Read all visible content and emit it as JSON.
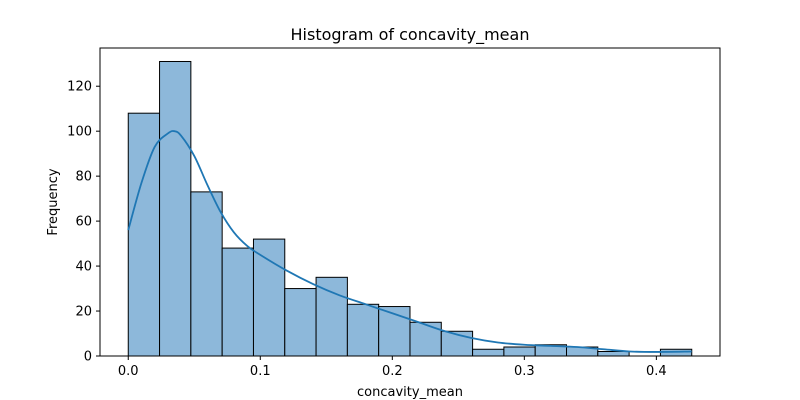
{
  "chart_data": {
    "type": "bar",
    "title": "Histogram of concavity_mean",
    "xlabel": "concavity_mean",
    "ylabel": "Frequency",
    "xlim": [
      -0.0214,
      0.4482
    ],
    "ylim": [
      0,
      137
    ],
    "x_ticks": [
      0.0,
      0.1,
      0.2,
      0.3,
      0.4
    ],
    "x_tick_labels": [
      "0.0",
      "0.1",
      "0.2",
      "0.3",
      "0.4"
    ],
    "y_ticks": [
      0,
      20,
      40,
      60,
      80,
      100,
      120
    ],
    "y_tick_labels": [
      "0",
      "20",
      "40",
      "60",
      "80",
      "100",
      "120"
    ],
    "bin_edges": [
      0.0,
      0.02371,
      0.04742,
      0.07113,
      0.09484,
      0.11855,
      0.14226,
      0.16597,
      0.18968,
      0.21339,
      0.2371,
      0.26081,
      0.28452,
      0.30823,
      0.33194,
      0.35565,
      0.37936,
      0.40307,
      0.4268
    ],
    "counts": [
      108,
      131,
      73,
      48,
      52,
      30,
      35,
      23,
      22,
      15,
      11,
      3,
      4,
      5,
      4,
      2,
      0,
      3
    ],
    "kde": {
      "x": [
        0.0,
        0.01,
        0.02,
        0.03,
        0.035,
        0.04,
        0.05,
        0.06,
        0.07,
        0.08,
        0.09,
        0.1,
        0.12,
        0.14,
        0.16,
        0.18,
        0.2,
        0.22,
        0.24,
        0.26,
        0.28,
        0.3,
        0.32,
        0.34,
        0.36,
        0.38,
        0.4,
        0.4268
      ],
      "y": [
        56,
        77,
        93,
        99,
        100,
        98,
        89,
        76,
        64,
        55,
        49,
        45,
        38,
        32,
        27,
        23,
        19,
        15,
        11,
        8,
        6,
        5,
        4.5,
        4,
        3,
        2,
        1.8,
        2
      ]
    },
    "bar_color": "#8db8da",
    "bar_edge_color": "#000000",
    "kde_color": "#1f77b4",
    "grid": false
  }
}
